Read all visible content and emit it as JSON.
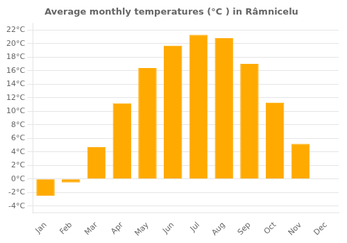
{
  "chart_data": {
    "type": "bar",
    "title": "Average monthly temperatures (°C ) in Râmnicelu",
    "categories": [
      "Jan",
      "Feb",
      "Mar",
      "Apr",
      "May",
      "Jun",
      "Jul",
      "Aug",
      "Sep",
      "Oct",
      "Nov",
      "Dec"
    ],
    "values": [
      -2.5,
      -0.5,
      4.7,
      11.2,
      16.4,
      19.7,
      21.3,
      20.8,
      17.0,
      11.3,
      5.2,
      0.0
    ],
    "color": "#FFAA00",
    "ylim": [
      -5,
      23
    ],
    "yticks": [
      {
        "value": -4,
        "label": "-4°C"
      },
      {
        "value": -2,
        "label": "-2°C"
      },
      {
        "value": 0,
        "label": "0°C"
      },
      {
        "value": 2,
        "label": "2°C"
      },
      {
        "value": 4,
        "label": "4°C"
      },
      {
        "value": 6,
        "label": "6°C"
      },
      {
        "value": 8,
        "label": "8°C"
      },
      {
        "value": 10,
        "label": "10°C"
      },
      {
        "value": 12,
        "label": "12°C"
      },
      {
        "value": 14,
        "label": "14°C"
      },
      {
        "value": 16,
        "label": "16°C"
      },
      {
        "value": 18,
        "label": "18°C"
      },
      {
        "value": 20,
        "label": "20°C"
      },
      {
        "value": 22,
        "label": "22°C"
      }
    ],
    "grid": true
  }
}
